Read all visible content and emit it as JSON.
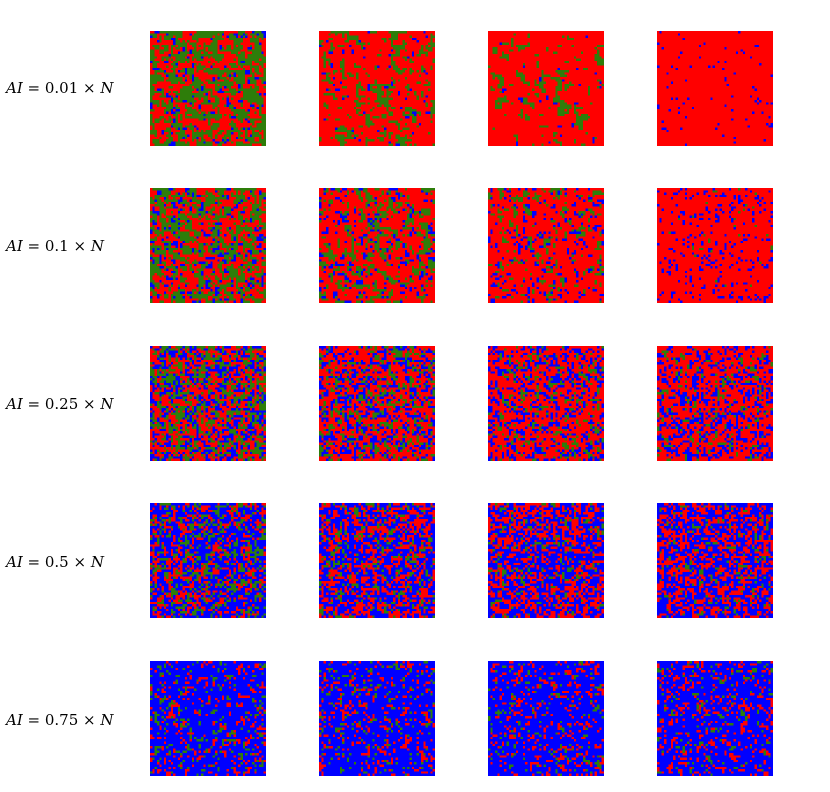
{
  "colors": {
    "red": "#ff0000",
    "green": "#2e7d0a",
    "blue": "#0000ff"
  },
  "rows": [
    {
      "label_pre": "AI = ",
      "label_num": "0.01",
      "label_post": " × N",
      "panels": [
        {
          "red": 0.42,
          "green": 0.48,
          "blue": 0.1,
          "cluster": 0.55
        },
        {
          "red": 0.7,
          "green": 0.24,
          "blue": 0.06,
          "cluster": 0.65
        },
        {
          "red": 0.82,
          "green": 0.13,
          "blue": 0.05,
          "cluster": 0.7
        },
        {
          "red": 0.97,
          "green": 0.0,
          "blue": 0.03,
          "cluster": 0.0
        }
      ]
    },
    {
      "label_pre": "AI = ",
      "label_num": "0.1",
      "label_post": " × N",
      "panels": [
        {
          "red": 0.42,
          "green": 0.4,
          "blue": 0.18,
          "cluster": 0.45
        },
        {
          "red": 0.58,
          "green": 0.24,
          "blue": 0.18,
          "cluster": 0.5
        },
        {
          "red": 0.7,
          "green": 0.13,
          "blue": 0.17,
          "cluster": 0.5
        },
        {
          "red": 0.85,
          "green": 0.01,
          "blue": 0.14,
          "cluster": 0.2
        }
      ]
    },
    {
      "label_pre": "AI = ",
      "label_num": "0.25",
      "label_post": " × N",
      "panels": [
        {
          "red": 0.38,
          "green": 0.3,
          "blue": 0.32,
          "cluster": 0.25
        },
        {
          "red": 0.5,
          "green": 0.18,
          "blue": 0.32,
          "cluster": 0.25
        },
        {
          "red": 0.56,
          "green": 0.12,
          "blue": 0.32,
          "cluster": 0.25
        },
        {
          "red": 0.6,
          "green": 0.08,
          "blue": 0.32,
          "cluster": 0.25
        }
      ]
    },
    {
      "label_pre": "AI = ",
      "label_num": "0.5",
      "label_post": " × N",
      "panels": [
        {
          "red": 0.25,
          "green": 0.2,
          "blue": 0.55,
          "cluster": 0.2
        },
        {
          "red": 0.32,
          "green": 0.13,
          "blue": 0.55,
          "cluster": 0.2
        },
        {
          "red": 0.36,
          "green": 0.09,
          "blue": 0.55,
          "cluster": 0.2
        },
        {
          "red": 0.38,
          "green": 0.07,
          "blue": 0.55,
          "cluster": 0.2
        }
      ]
    },
    {
      "label_pre": "AI = ",
      "label_num": "0.75",
      "label_post": " × N",
      "panels": [
        {
          "red": 0.12,
          "green": 0.1,
          "blue": 0.78,
          "cluster": 0.15
        },
        {
          "red": 0.14,
          "green": 0.08,
          "blue": 0.78,
          "cluster": 0.15
        },
        {
          "red": 0.15,
          "green": 0.07,
          "blue": 0.78,
          "cluster": 0.15
        },
        {
          "red": 0.16,
          "green": 0.06,
          "blue": 0.78,
          "cluster": 0.15
        }
      ]
    }
  ]
}
